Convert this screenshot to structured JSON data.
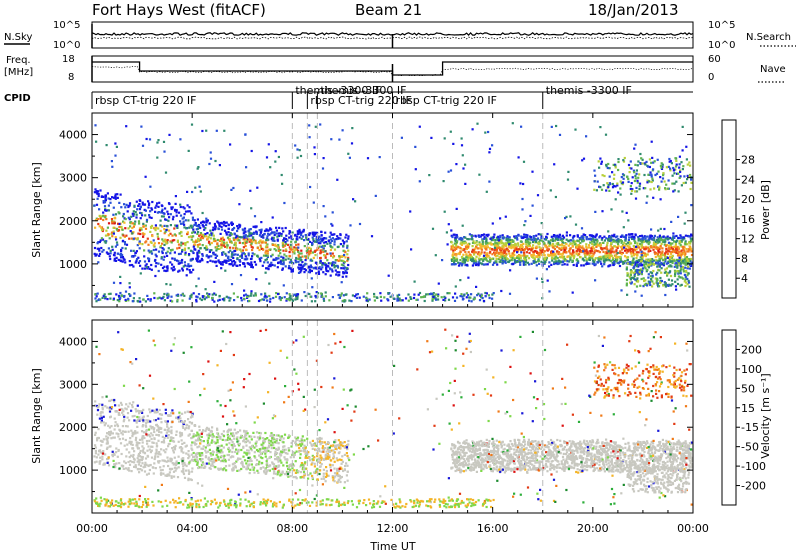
{
  "header": {
    "station": "Fort Hays West (fitACF)",
    "beam": "Beam 21",
    "date": "18/Jan/2013"
  },
  "top_panels": {
    "nsky_label": "N.Sky",
    "nsky_tick_top": "10^5",
    "nsky_tick_bottom": "10^0",
    "nsearch_label": "N.Search",
    "nsearch_tick_top": "10^5",
    "nsearch_tick_bottom": "10^0",
    "freq_label": "Freq.",
    "freq_unit": "[MHz]",
    "freq_tick_top": "18",
    "freq_tick_bottom": "8",
    "nave_label": "Nave",
    "nave_tick_top": "60",
    "nave_tick_bottom": "0",
    "cpid_label": "CPID"
  },
  "cpid_segments": [
    {
      "label": "rbsp CT-trig 220 IF",
      "start_hour": 0.0
    },
    {
      "label": "themis -3300 IF",
      "start_hour": 8.0
    },
    {
      "label": "rbsp CT-trig 220 IF",
      "start_hour": 8.6
    },
    {
      "label": "themis -3300 IF",
      "start_hour": 9.0
    },
    {
      "label": "rbsp CT-trig 220 IF",
      "start_hour": 12.0
    },
    {
      "label": "themis -3300 IF",
      "start_hour": 18.0
    }
  ],
  "chart_data": [
    {
      "type": "heatmap",
      "name": "power",
      "ylabel": "Slant Range [km]",
      "ylim": [
        0,
        4500
      ],
      "yticks": [
        1000,
        2000,
        3000,
        4000
      ],
      "xlim_hours": [
        0,
        24
      ],
      "colorbar": {
        "label": "Power [dB]",
        "ticks": [
          "4",
          "8",
          "12",
          "16",
          "20",
          "24",
          "28"
        ],
        "colors": [
          "#1414e6",
          "#2850d8",
          "#2f8a6e",
          "#5fb44e",
          "#b8d03a",
          "#f4b82c",
          "#f27a1e",
          "#e63a16",
          "#dc1414"
        ]
      }
    },
    {
      "type": "heatmap",
      "name": "velocity",
      "xlabel": "Time UT",
      "ylabel": "Slant Range [km]",
      "ylim": [
        0,
        4500
      ],
      "yticks": [
        1000,
        2000,
        3000,
        4000
      ],
      "xlim_hours": [
        0,
        24
      ],
      "xticks": [
        "00:00",
        "04:00",
        "08:00",
        "12:00",
        "16:00",
        "20:00",
        "00:00"
      ],
      "colorbar": {
        "label": "Velocity [m s⁻¹]",
        "ticks": [
          "200",
          "100",
          "50",
          "15",
          "-15",
          "-50",
          "-100",
          "-200"
        ],
        "colors": [
          "#1818d8",
          "#1c8a2e",
          "#2cae3a",
          "#7ed84a",
          "#c8c8c0",
          "#f4b426",
          "#f07a18",
          "#e23a14",
          "#dc1010"
        ]
      }
    }
  ]
}
